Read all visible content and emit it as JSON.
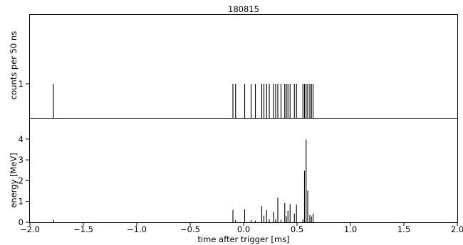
{
  "chart_data": [
    {
      "type": "bar",
      "title": "180815",
      "ylabel": "counts per 50 ns",
      "xlabel": "",
      "xlim": [
        -2.0,
        2.0
      ],
      "ylim": [
        0,
        3
      ],
      "yticks": [
        1
      ],
      "grid": false,
      "series": [
        {
          "values": [
            {
              "x": -1.78,
              "y": 1
            },
            {
              "x": -0.1,
              "y": 1
            },
            {
              "x": -0.075,
              "y": 1
            },
            {
              "x": 0.01,
              "y": 1
            },
            {
              "x": 0.07,
              "y": 1
            },
            {
              "x": 0.11,
              "y": 1
            },
            {
              "x": 0.17,
              "y": 1
            },
            {
              "x": 0.19,
              "y": 1
            },
            {
              "x": 0.215,
              "y": 1
            },
            {
              "x": 0.24,
              "y": 1
            },
            {
              "x": 0.28,
              "y": 1
            },
            {
              "x": 0.3,
              "y": 1
            },
            {
              "x": 0.32,
              "y": 1
            },
            {
              "x": 0.35,
              "y": 1
            },
            {
              "x": 0.385,
              "y": 1
            },
            {
              "x": 0.4,
              "y": 1
            },
            {
              "x": 0.415,
              "y": 1
            },
            {
              "x": 0.435,
              "y": 1
            },
            {
              "x": 0.475,
              "y": 1
            },
            {
              "x": 0.495,
              "y": 1
            },
            {
              "x": 0.555,
              "y": 1
            },
            {
              "x": 0.57,
              "y": 1
            },
            {
              "x": 0.585,
              "y": 1
            },
            {
              "x": 0.6,
              "y": 1
            },
            {
              "x": 0.62,
              "y": 1
            },
            {
              "x": 0.635,
              "y": 1
            },
            {
              "x": 0.65,
              "y": 1
            }
          ]
        }
      ]
    },
    {
      "type": "bar",
      "title": "",
      "ylabel": "energy [MeV]",
      "xlabel": "time after trigger [ms]",
      "xlim": [
        -2.0,
        2.0
      ],
      "ylim": [
        0,
        4.1
      ],
      "xticks": [
        -2.0,
        -1.5,
        -1.0,
        -0.5,
        0.0,
        0.5,
        1.0,
        1.5,
        2.0
      ],
      "xticklabels": [
        "−2.0",
        "−1.5",
        "−1.0",
        "−0.5",
        "0.0",
        "0.5",
        "1.0",
        "1.5",
        "2.0"
      ],
      "yticks": [
        0,
        1,
        2,
        3,
        4
      ],
      "yticklabels": [
        "0",
        "1",
        "2",
        "3",
        "4"
      ],
      "grid": false,
      "series": [
        {
          "values": [
            {
              "x": -1.78,
              "y": 0.12
            },
            {
              "x": -0.1,
              "y": 0.6
            },
            {
              "x": -0.075,
              "y": 0.1
            },
            {
              "x": 0.01,
              "y": 0.62
            },
            {
              "x": 0.07,
              "y": 0.1
            },
            {
              "x": 0.11,
              "y": 0.08
            },
            {
              "x": 0.17,
              "y": 0.78
            },
            {
              "x": 0.19,
              "y": 0.32
            },
            {
              "x": 0.215,
              "y": 0.58
            },
            {
              "x": 0.24,
              "y": 0.15
            },
            {
              "x": 0.28,
              "y": 0.48
            },
            {
              "x": 0.3,
              "y": 0.15
            },
            {
              "x": 0.32,
              "y": 1.18
            },
            {
              "x": 0.35,
              "y": 0.12
            },
            {
              "x": 0.385,
              "y": 0.92
            },
            {
              "x": 0.4,
              "y": 0.3
            },
            {
              "x": 0.415,
              "y": 0.55
            },
            {
              "x": 0.435,
              "y": 0.88
            },
            {
              "x": 0.475,
              "y": 0.42
            },
            {
              "x": 0.495,
              "y": 0.85
            },
            {
              "x": 0.555,
              "y": 0.15
            },
            {
              "x": 0.57,
              "y": 2.48
            },
            {
              "x": 0.585,
              "y": 3.98
            },
            {
              "x": 0.6,
              "y": 1.52
            },
            {
              "x": 0.62,
              "y": 0.35
            },
            {
              "x": 0.635,
              "y": 0.28
            },
            {
              "x": 0.65,
              "y": 0.42
            }
          ]
        }
      ]
    }
  ]
}
